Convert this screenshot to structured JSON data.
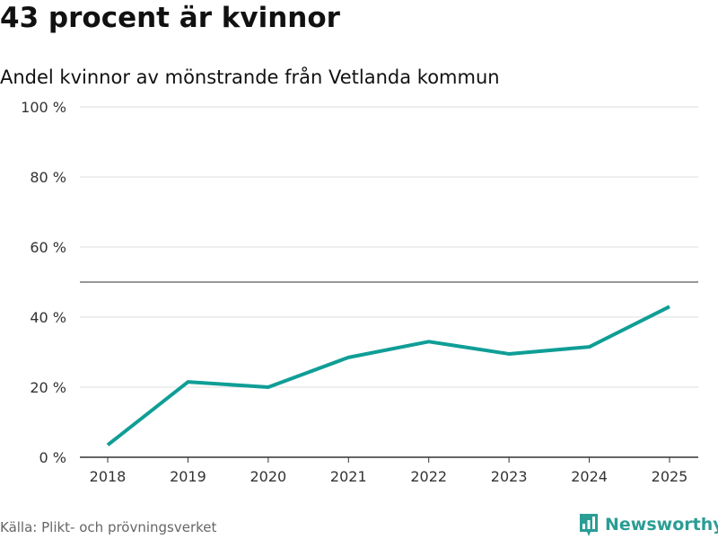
{
  "title": "43 procent är kvinnor",
  "subtitle": "Andel kvinnor av mönstrande från Vetlanda kommun",
  "source": "Källa: Plikt- och prövningsverket",
  "brand": "Newsworthy",
  "colors": {
    "line": "#0f9e96",
    "grid": "#dddddd",
    "reference": "#777777",
    "brand": "#2a9d95"
  },
  "chart_data": {
    "type": "line",
    "x": [
      "2018",
      "2019",
      "2020",
      "2021",
      "2022",
      "2023",
      "2024",
      "2025"
    ],
    "values": [
      3.5,
      21.5,
      20,
      28.5,
      33,
      29.5,
      31.5,
      43
    ],
    "ylim": [
      0,
      100
    ],
    "yticks": [
      0,
      20,
      40,
      60,
      80,
      100
    ],
    "ytick_labels": [
      "0 %",
      "20 %",
      "40 %",
      "60 %",
      "80 %",
      "100 %"
    ],
    "reference_line": 50,
    "xlabel": "",
    "ylabel": "",
    "grid": true
  }
}
